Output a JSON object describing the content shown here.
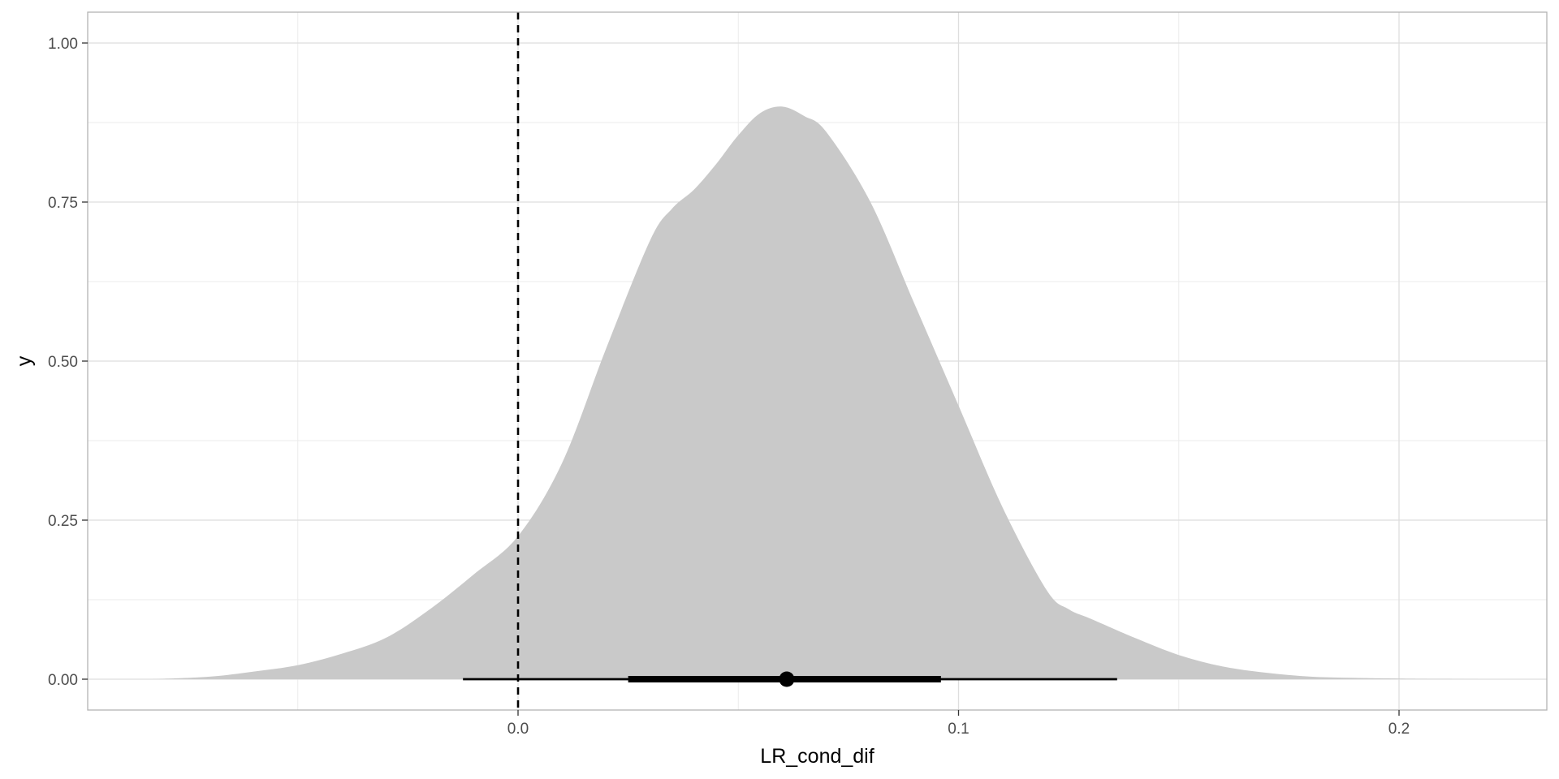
{
  "chart_data": {
    "type": "area",
    "xlabel": "LR_cond_dif",
    "ylabel": "y",
    "xlim": [
      -0.098,
      0.233
    ],
    "ylim": [
      -0.05,
      1.05
    ],
    "x_ticks": [
      {
        "value": 0.0,
        "label": "0.0"
      },
      {
        "value": 0.1,
        "label": "0.1"
      },
      {
        "value": 0.2,
        "label": "0.2"
      }
    ],
    "x_minor_ticks": [
      -0.05,
      0.05,
      0.15
    ],
    "y_ticks": [
      {
        "value": 0.0,
        "label": "0.00"
      },
      {
        "value": 0.25,
        "label": "0.25"
      },
      {
        "value": 0.5,
        "label": "0.50"
      },
      {
        "value": 0.75,
        "label": "0.75"
      },
      {
        "value": 1.0,
        "label": "1.00"
      }
    ],
    "y_minor_ticks": [
      0.125,
      0.375,
      0.625,
      0.875
    ],
    "grid": true,
    "density": {
      "fill_color": "#c9c9c9",
      "x": [
        -0.083,
        -0.07,
        -0.06,
        -0.05,
        -0.04,
        -0.03,
        -0.02,
        -0.01,
        0.0,
        0.01,
        0.02,
        0.03,
        0.035,
        0.04,
        0.045,
        0.05,
        0.055,
        0.06,
        0.065,
        0.07,
        0.08,
        0.09,
        0.1,
        0.11,
        0.12,
        0.125,
        0.13,
        0.14,
        0.15,
        0.16,
        0.17,
        0.18,
        0.19,
        0.2,
        0.218
      ],
      "y": [
        0.0,
        0.004,
        0.012,
        0.022,
        0.04,
        0.065,
        0.11,
        0.165,
        0.225,
        0.34,
        0.52,
        0.69,
        0.74,
        0.77,
        0.81,
        0.855,
        0.89,
        0.9,
        0.885,
        0.86,
        0.75,
        0.59,
        0.43,
        0.27,
        0.14,
        0.11,
        0.095,
        0.065,
        0.038,
        0.02,
        0.01,
        0.004,
        0.002,
        0.001,
        0.0
      ]
    },
    "reference_line": {
      "x": 0.0,
      "style": "dashed",
      "color": "#000000"
    },
    "interval": {
      "point": 0.061,
      "inner": [
        0.025,
        0.096
      ],
      "outer": [
        -0.0125,
        0.136
      ],
      "color": "#000000"
    }
  }
}
